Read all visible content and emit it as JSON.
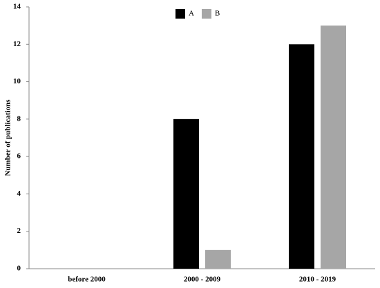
{
  "chart_data": {
    "type": "bar",
    "y_label": "Number of publications",
    "categories": [
      "before 2000",
      "2000 - 2009",
      "2010 - 2019"
    ],
    "series": [
      {
        "name": "A",
        "color": "#000000",
        "values": [
          0,
          8,
          12
        ]
      },
      {
        "name": "B",
        "color": "#a6a6a6",
        "values": [
          0,
          1,
          13
        ]
      }
    ],
    "ylim": [
      0,
      14
    ],
    "yticks": [
      0,
      2,
      4,
      6,
      8,
      10,
      12,
      14
    ],
    "grid": false,
    "legend": "top"
  }
}
